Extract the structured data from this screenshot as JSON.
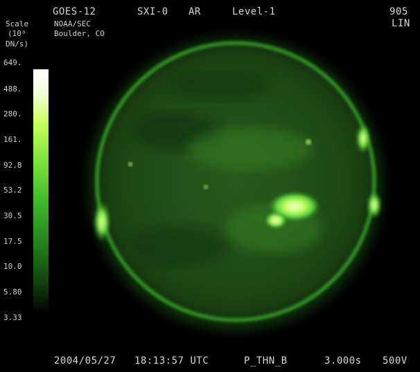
{
  "header": {
    "satellite": "GOES-12",
    "instrument": "SXI-0",
    "region": "AR",
    "level": "Level-1",
    "frame_number": "905",
    "stretch": "LIN",
    "agency": "NOAA/SEC",
    "location": "Boulder, CO"
  },
  "scale": {
    "label_line1": "Scale",
    "label_line2": "(10⁰",
    "label_line3": "DN/s)",
    "ticks": [
      "649.",
      "488.",
      "280.",
      "161.",
      "92.8",
      "53.2",
      "30.5",
      "17.5",
      "10.0",
      "5.80",
      "3.33"
    ]
  },
  "footer": {
    "date": "2004/05/27",
    "time": "18:13:57 UTC",
    "filter": "P_THN_B",
    "exposure": "3.000s",
    "voltage": "500V"
  },
  "colors": {
    "background": "#000000",
    "corona_green": "#2ea82a",
    "bright_green": "#b6ff5a"
  }
}
